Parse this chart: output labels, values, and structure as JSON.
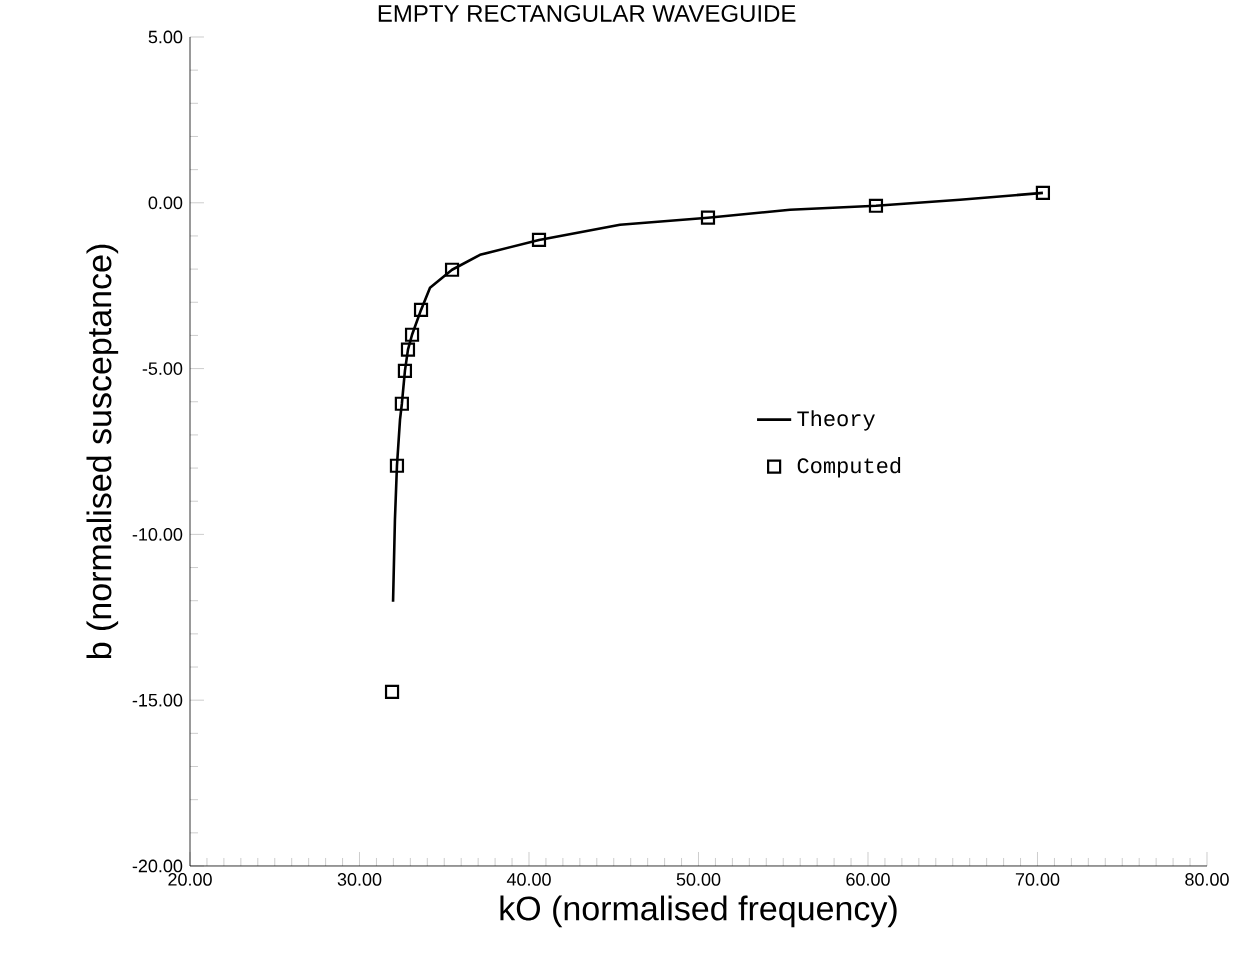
{
  "chart_data": {
    "type": "line",
    "title": "EMPTY RECTANGULAR WAVEGUIDE",
    "xlabel": "kO (normalised frequency)",
    "ylabel": "b (normalised susceptance)",
    "xlim": [
      20,
      80
    ],
    "ylim": [
      -20,
      5
    ],
    "xticks": [
      {
        "value": 20,
        "label": "20.00"
      },
      {
        "value": 30,
        "label": "30.00"
      },
      {
        "value": 40,
        "label": "40.00"
      },
      {
        "value": 50,
        "label": "50.00"
      },
      {
        "value": 60,
        "label": "60.00"
      },
      {
        "value": 70,
        "label": "70.00"
      },
      {
        "value": 80,
        "label": "80.00"
      }
    ],
    "yticks": [
      {
        "value": -20,
        "label": "-20.00"
      },
      {
        "value": -15,
        "label": "-15.00"
      },
      {
        "value": -10,
        "label": "-10.00"
      },
      {
        "value": -5,
        "label": "-5.00"
      },
      {
        "value": 0,
        "label": "0.00"
      },
      {
        "value": 5,
        "label": "5.00"
      }
    ],
    "grid": false,
    "legend": "center",
    "series": [
      {
        "name": "Theory",
        "color": "#000000",
        "marker": "none",
        "x": [
          31.98,
          32.09,
          32.21,
          32.39,
          32.5,
          32.68,
          32.86,
          33.1,
          33.63,
          34.16,
          35.46,
          37.11,
          40.59,
          45.37,
          50.56,
          55.4,
          60.47,
          65.43,
          70.32
        ],
        "values": [
          -12.03,
          -9.56,
          -7.93,
          -6.54,
          -6.06,
          -5.07,
          -4.43,
          -3.98,
          -3.23,
          -2.56,
          -2.02,
          -1.57,
          -1.12,
          -0.66,
          -0.45,
          -0.21,
          -0.09,
          0.09,
          0.3
        ]
      },
      {
        "name": "Computed",
        "type": "scatter",
        "color": "#000000",
        "marker": "square",
        "x": [
          31.92,
          32.21,
          32.5,
          32.68,
          32.86,
          33.1,
          33.63,
          35.46,
          40.59,
          50.56,
          60.47,
          70.32
        ],
        "values": [
          -14.75,
          -7.93,
          -6.06,
          -5.07,
          -4.43,
          -3.98,
          -3.23,
          -2.02,
          -1.12,
          -0.45,
          -0.09,
          0.3
        ]
      }
    ]
  }
}
